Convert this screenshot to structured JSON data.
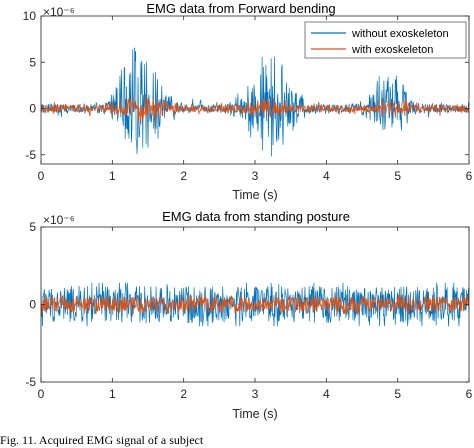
{
  "chart_data": [
    {
      "type": "line",
      "title": "EMG data from Forward bending",
      "xlabel": "Time (s)",
      "ylabel": "",
      "scale_factor_label": "×10⁻⁶",
      "xlim": [
        0,
        6
      ],
      "ylim": [
        -6,
        10
      ],
      "xticks": [
        0,
        1,
        2,
        3,
        4,
        5,
        6
      ],
      "yticks": [
        -5,
        0,
        5,
        10
      ],
      "legend_position": "top-right",
      "grid": false,
      "series": [
        {
          "name": "without exoskeleton",
          "color": "#0072BD",
          "baseline_amplitude": 0.5,
          "bursts": [
            {
              "center": 1.4,
              "width": 0.35,
              "peak": 7.6,
              "trough": -5.5
            },
            {
              "center": 3.2,
              "width": 0.35,
              "peak": 6.5,
              "trough": -5.2
            },
            {
              "center": 4.9,
              "width": 0.3,
              "peak": 4.3,
              "trough": -3.3
            }
          ]
        },
        {
          "name": "with exoskeleton",
          "color": "#D95319",
          "baseline_amplitude": 0.4,
          "bursts": [
            {
              "center": 1.4,
              "width": 0.4,
              "peak": 1.7,
              "trough": -1.2
            },
            {
              "center": 3.2,
              "width": 0.4,
              "peak": 1.3,
              "trough": -1.0
            },
            {
              "center": 4.9,
              "width": 0.3,
              "peak": 1.1,
              "trough": -0.8
            }
          ]
        }
      ]
    },
    {
      "type": "line",
      "title": "EMG data from standing posture",
      "xlabel": "Time (s)",
      "ylabel": "",
      "scale_factor_label": "×10⁻⁶",
      "xlim": [
        0,
        6
      ],
      "ylim": [
        -5,
        5
      ],
      "xticks": [
        0,
        1,
        2,
        3,
        4,
        5,
        6
      ],
      "yticks": [
        -5,
        0,
        5
      ],
      "grid": false,
      "series": [
        {
          "name": "without exoskeleton",
          "color": "#0072BD",
          "baseline_amplitude": 1.2,
          "peak": 1.4,
          "trough": -1.4,
          "bursts": []
        },
        {
          "name": "with exoskeleton",
          "color": "#D95319",
          "baseline_amplitude": 0.5,
          "peak": 0.6,
          "trough": -0.6,
          "bursts": []
        }
      ]
    }
  ],
  "caption": "Fig. 11.   Acquired EMG signal of a subject"
}
